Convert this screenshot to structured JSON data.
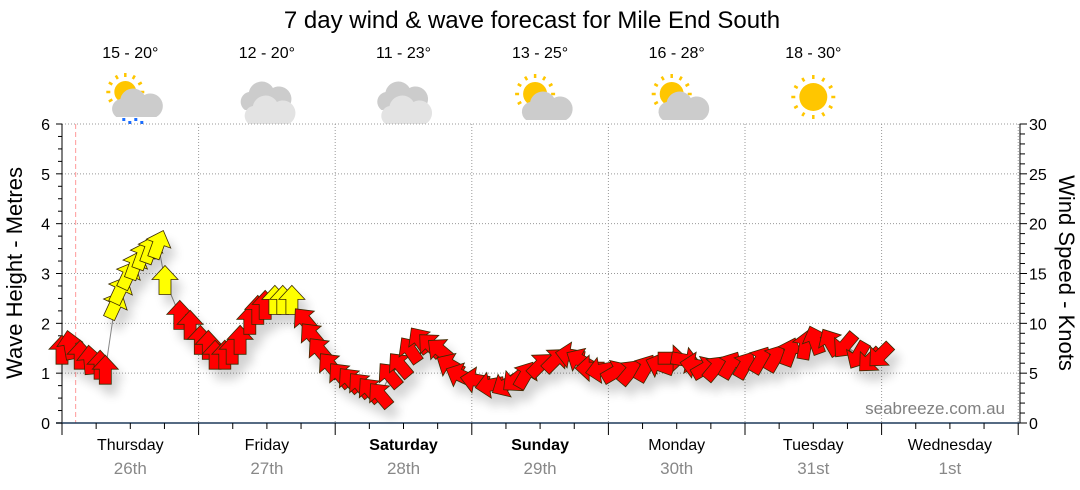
{
  "chart_data": {
    "type": "scatter",
    "title": "7 day wind & wave forecast for Mile End South",
    "ylabel_left": "Wave Height - Metres",
    "ylabel_right": "Wind Speed - Knots",
    "ylim_left": [
      0,
      6
    ],
    "ylim_right": [
      0,
      30
    ],
    "left_ticks": [
      "0",
      "1",
      "2",
      "3",
      "4",
      "5",
      "6"
    ],
    "right_ticks": [
      "0",
      "5",
      "10",
      "15",
      "20",
      "25",
      "30"
    ],
    "grid": true,
    "days": [
      {
        "day": "Thursday",
        "date": "26th",
        "bold": false
      },
      {
        "day": "Friday",
        "date": "27th",
        "bold": false
      },
      {
        "day": "Saturday",
        "date": "28th",
        "bold": true
      },
      {
        "day": "Sunday",
        "date": "29th",
        "bold": true
      },
      {
        "day": "Monday",
        "date": "30th",
        "bold": false
      },
      {
        "day": "Tuesday",
        "date": "31st",
        "bold": false
      },
      {
        "day": "Wednesday",
        "date": "1st",
        "bold": false
      }
    ],
    "forecast": [
      {
        "temp": "15 - 20°",
        "icon": "rain-partly-cloudy-icon"
      },
      {
        "temp": "12 - 20°",
        "icon": "cloudy-icon"
      },
      {
        "temp": "11 - 23°",
        "icon": "cloudy-icon"
      },
      {
        "temp": "13 - 25°",
        "icon": "partly-cloudy-icon"
      },
      {
        "temp": "16 - 28°",
        "icon": "partly-cloudy-icon"
      },
      {
        "temp": "18 - 30°",
        "icon": "sunny-icon"
      }
    ],
    "now_hour": 2.4,
    "wind_series_fields": [
      "hour_from_thursday_0000",
      "knots",
      "direction_deg",
      "color"
    ],
    "wind": [
      [
        0,
        7.3,
        0,
        "red"
      ],
      [
        1.4,
        7.8,
        -10,
        "red"
      ],
      [
        3.2,
        6.8,
        0,
        "red"
      ],
      [
        4.9,
        6.3,
        -5,
        "red"
      ],
      [
        6.7,
        5.8,
        0,
        "red"
      ],
      [
        7.6,
        5.3,
        0,
        "red"
      ],
      [
        9.3,
        11.8,
        25,
        "yellow"
      ],
      [
        10.2,
        13.3,
        25,
        "yellow"
      ],
      [
        11.6,
        14.8,
        25,
        "yellow"
      ],
      [
        12.8,
        15.8,
        20,
        "yellow"
      ],
      [
        14.1,
        16.8,
        20,
        "yellow"
      ],
      [
        15.5,
        17.4,
        20,
        "yellow"
      ],
      [
        16.9,
        17.9,
        20,
        "yellow"
      ],
      [
        18.1,
        14.3,
        0,
        "yellow"
      ],
      [
        20.7,
        10.8,
        0,
        "red"
      ],
      [
        22.5,
        9.8,
        0,
        "red"
      ],
      [
        24.3,
        8.3,
        0,
        "red"
      ],
      [
        25.7,
        7.8,
        0,
        "red"
      ],
      [
        26.9,
        6.8,
        0,
        "red"
      ],
      [
        28.6,
        6.8,
        0,
        "red"
      ],
      [
        29.9,
        7.3,
        0,
        "red"
      ],
      [
        31.3,
        8.3,
        0,
        "red"
      ],
      [
        33,
        10.3,
        0,
        "red"
      ],
      [
        34.4,
        11.3,
        0,
        "red"
      ],
      [
        35.7,
        11.8,
        0,
        "red"
      ],
      [
        37.4,
        12.3,
        0,
        "yellow"
      ],
      [
        38.8,
        12.3,
        0,
        "yellow"
      ],
      [
        40.4,
        12.3,
        0,
        "yellow"
      ],
      [
        42.7,
        10.3,
        -40,
        "red"
      ],
      [
        43.9,
        8.8,
        -40,
        "red"
      ],
      [
        45.3,
        7.3,
        -40,
        "red"
      ],
      [
        47.1,
        5.8,
        -40,
        "red"
      ],
      [
        48.9,
        4.8,
        -40,
        "red"
      ],
      [
        50.6,
        4.3,
        -40,
        "red"
      ],
      [
        52.4,
        3.8,
        -40,
        "red"
      ],
      [
        54.1,
        3.3,
        -40,
        "red"
      ],
      [
        55.9,
        2.8,
        -40,
        "red"
      ],
      [
        57.6,
        4.8,
        -40,
        "red"
      ],
      [
        59.4,
        5.8,
        -40,
        "red"
      ],
      [
        61.2,
        7.3,
        -35,
        "red"
      ],
      [
        62.9,
        8.3,
        -35,
        "red"
      ],
      [
        64.7,
        7.8,
        -45,
        "red"
      ],
      [
        66.4,
        7.3,
        -50,
        "red"
      ],
      [
        68.2,
        5.8,
        -60,
        "red"
      ],
      [
        69.9,
        4.8,
        -65,
        "red"
      ],
      [
        72.6,
        4.3,
        -80,
        "red"
      ],
      [
        75.2,
        3.8,
        -100,
        "red"
      ],
      [
        77.9,
        3.8,
        240,
        "red"
      ],
      [
        79.6,
        4.3,
        230,
        "red"
      ],
      [
        81.4,
        4.8,
        30,
        "red"
      ],
      [
        84,
        5.8,
        45,
        "red"
      ],
      [
        86.6,
        6.3,
        45,
        "red"
      ],
      [
        89.3,
        6.8,
        -80,
        "red"
      ],
      [
        91,
        6.3,
        -60,
        "red"
      ],
      [
        92.8,
        5.5,
        -90,
        "red"
      ],
      [
        94.6,
        5.3,
        -100,
        "red"
      ],
      [
        97.2,
        5.1,
        60,
        "red"
      ],
      [
        99.8,
        5.1,
        40,
        "red"
      ],
      [
        102.5,
        5.5,
        30,
        "red"
      ],
      [
        105.1,
        5.8,
        -70,
        "red"
      ],
      [
        107.2,
        6.5,
        90,
        "red"
      ],
      [
        109.5,
        6.3,
        100,
        "red"
      ],
      [
        111.2,
        5.8,
        -80,
        "red"
      ],
      [
        113,
        5.5,
        60,
        "red"
      ],
      [
        114.8,
        5.5,
        40,
        "red"
      ],
      [
        117.4,
        5.8,
        30,
        "red"
      ],
      [
        120,
        5.8,
        30,
        "red"
      ],
      [
        122.7,
        6.3,
        30,
        "red"
      ],
      [
        125.3,
        6.5,
        30,
        "red"
      ],
      [
        127.9,
        7.1,
        20,
        "red"
      ],
      [
        130.6,
        7.8,
        10,
        "red"
      ],
      [
        132.3,
        8.3,
        -20,
        "red"
      ],
      [
        135,
        8.1,
        -30,
        "red"
      ],
      [
        137.6,
        7.8,
        220,
        "red"
      ],
      [
        139.9,
        6.8,
        210,
        "red"
      ],
      [
        142,
        6.3,
        225,
        "red"
      ],
      [
        143.8,
        6.8,
        225,
        "red"
      ]
    ],
    "colors": {
      "red": "#ff0000",
      "yellow": "#ffff00",
      "now_line": "#ff9999",
      "axis": "#1f3a5a"
    }
  },
  "watermark": "seabreeze.com.au"
}
